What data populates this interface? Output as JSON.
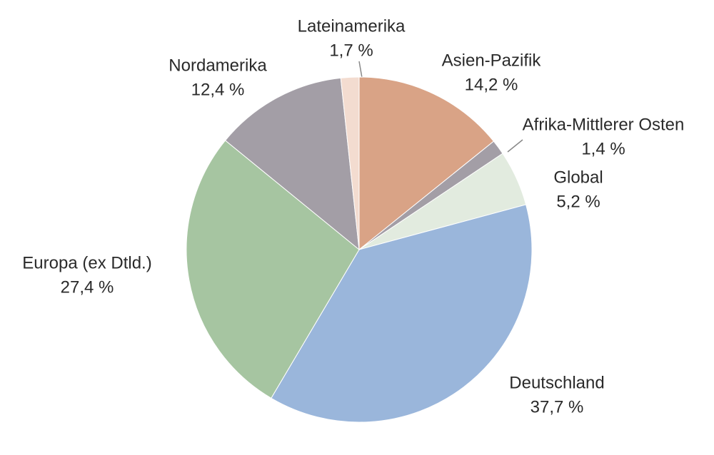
{
  "chart_data": {
    "type": "pie",
    "categories": [
      "Asien-Pazifik",
      "Afrika-Mittlerer Osten",
      "Global",
      "Deutschland",
      "Europa (ex Dtld.)",
      "Nordamerika",
      "Lateinamerika"
    ],
    "values": [
      14.2,
      1.4,
      5.2,
      37.7,
      27.4,
      12.4,
      1.7
    ],
    "value_labels": [
      "14,2 %",
      "1,4 %",
      "5,2 %",
      "37,7 %",
      "27,4 %",
      "12,4 %",
      "1,7 %"
    ],
    "colors": [
      "#d9a386",
      "#a39ea6",
      "#e2ebdf",
      "#9ab6db",
      "#a6c5a1",
      "#a39ea6",
      "#f3dcd0"
    ]
  }
}
